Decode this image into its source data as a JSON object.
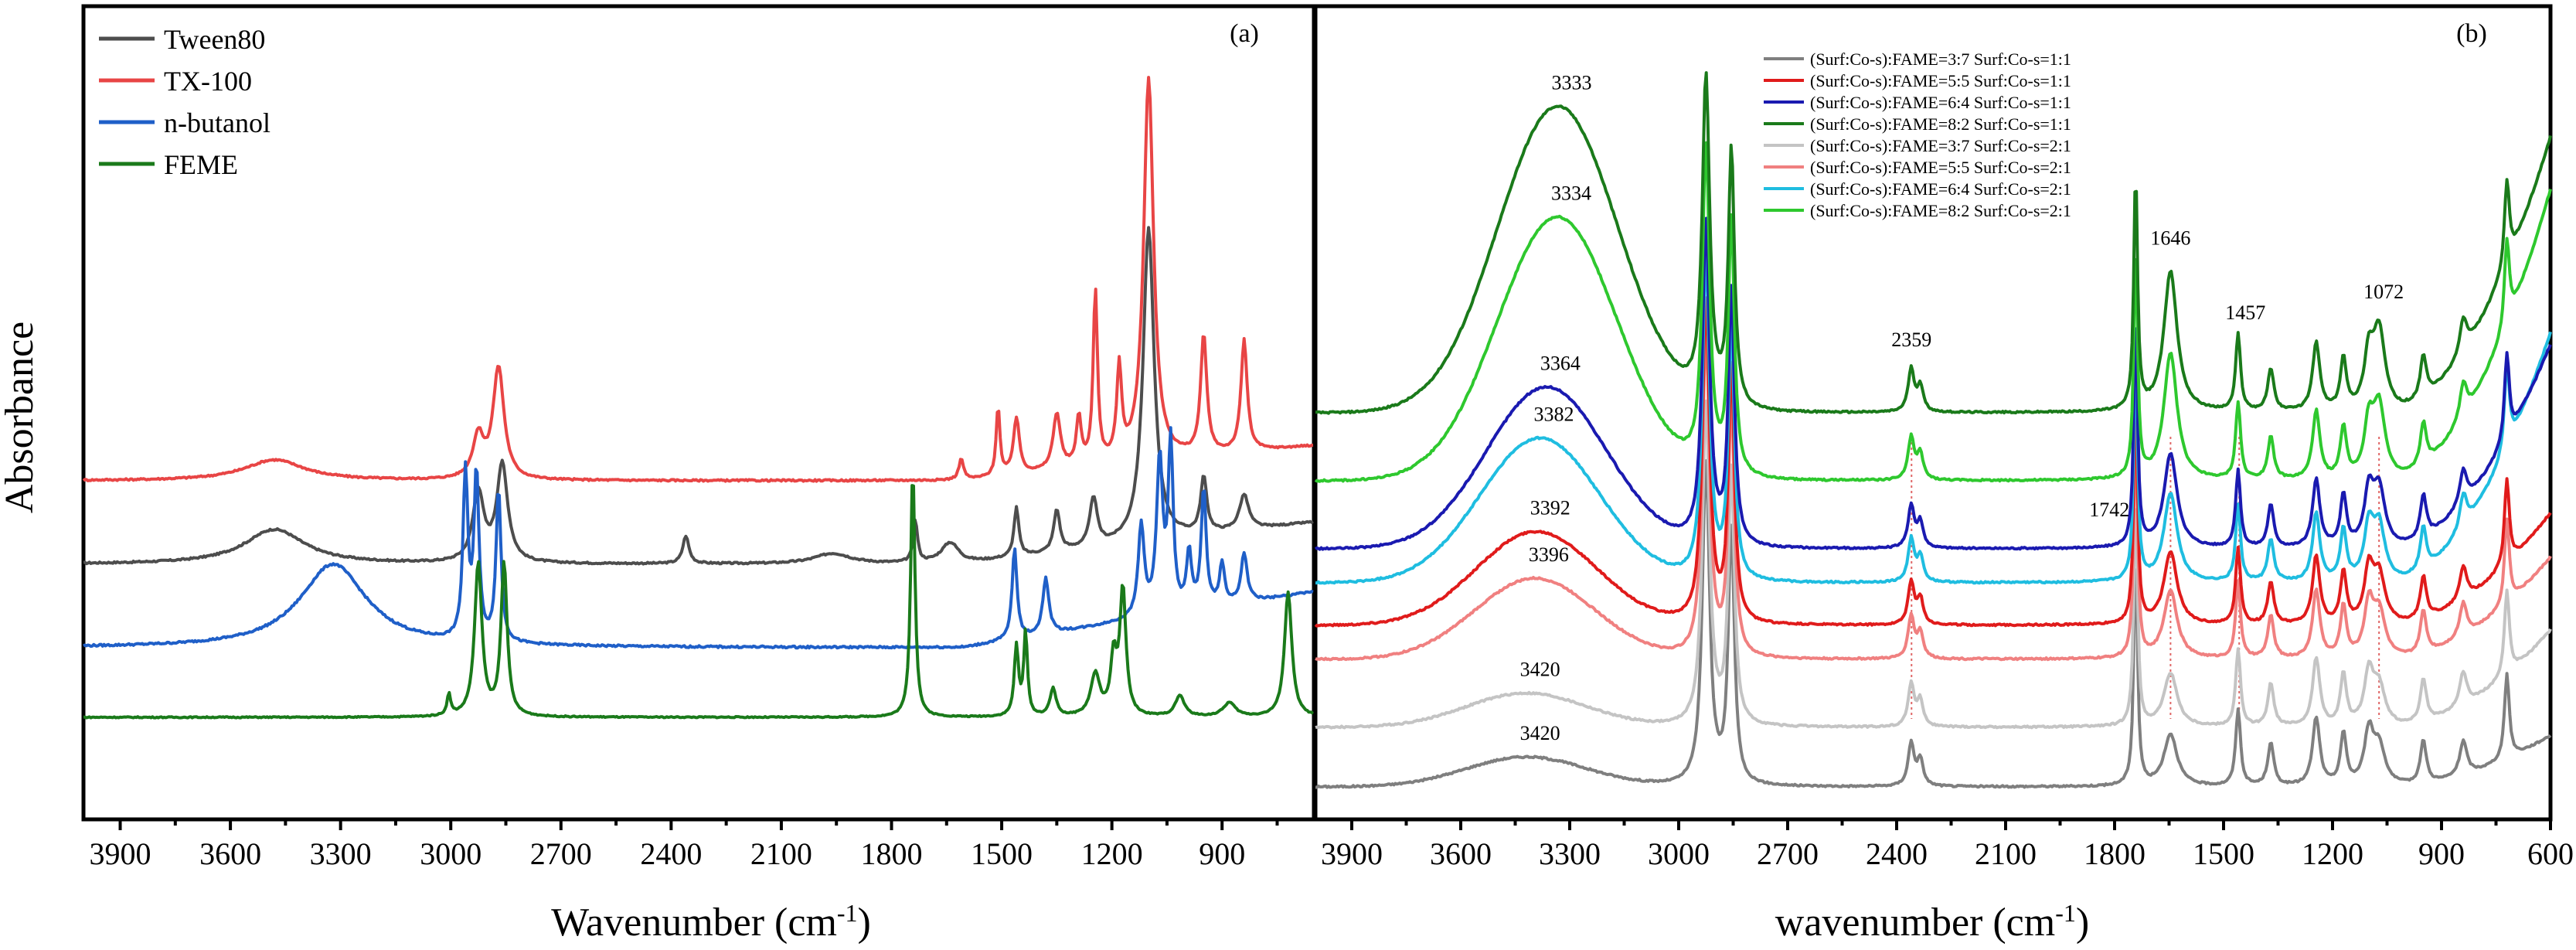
{
  "y_axis_label": "Absorbance",
  "chart_data": [
    {
      "type": "line",
      "panel_label": "(a)",
      "xlabel": "Wavenumber (cm",
      "xlabel_sup": "-1",
      "xlabel_close": ")",
      "xlim": [
        4000,
        650
      ],
      "xticks": [
        3900,
        3600,
        3300,
        3000,
        2700,
        2400,
        2100,
        1800,
        1500,
        1200,
        900
      ],
      "xticklabels": [
        "3900",
        "3600",
        "3300",
        "3000",
        "2700",
        "2400",
        "2100",
        "1800",
        "1500",
        "1200",
        "900"
      ],
      "legend_position": "top-left",
      "series": [
        {
          "name": "Tween80",
          "color": "#4d4d4d",
          "baseline": 0.3,
          "noise": 0.6,
          "peaks": [
            [
              3480,
              100,
              0.05
            ],
            [
              2925,
              18,
              0.1
            ],
            [
              2860,
              18,
              0.14
            ],
            [
              2360,
              10,
              0.04
            ],
            [
              1960,
              60,
              0.015
            ],
            [
              1735,
              7,
              0.06
            ],
            [
              1640,
              30,
              0.03
            ],
            [
              1460,
              8,
              0.07
            ],
            [
              1350,
              10,
              0.06
            ],
            [
              1250,
              12,
              0.07
            ],
            [
              1100,
              18,
              0.45
            ],
            [
              950,
              10,
              0.08
            ],
            [
              840,
              15,
              0.05
            ]
          ],
          "slope": 0.06
        },
        {
          "name": "TX-100",
          "color": "#e84545",
          "baseline": 0.42,
          "noise": 0.6,
          "peaks": [
            [
              3480,
              100,
              0.03
            ],
            [
              2925,
              18,
              0.06
            ],
            [
              2870,
              18,
              0.16
            ],
            [
              1610,
              8,
              0.03
            ],
            [
              1510,
              6,
              0.1
            ],
            [
              1460,
              10,
              0.08
            ],
            [
              1350,
              12,
              0.08
            ],
            [
              1290,
              8,
              0.07
            ],
            [
              1245,
              7,
              0.25
            ],
            [
              1180,
              8,
              0.13
            ],
            [
              1100,
              16,
              0.55
            ],
            [
              950,
              10,
              0.17
            ],
            [
              840,
              10,
              0.16
            ]
          ],
          "slope": 0.05
        },
        {
          "name": "n-butanol",
          "color": "#1f5fc8",
          "baseline": 0.18,
          "noise": 0.7,
          "peaks": [
            [
              3320,
              110,
              0.12
            ],
            [
              2960,
              8,
              0.24
            ],
            [
              2930,
              8,
              0.24
            ],
            [
              2870,
              8,
              0.22
            ],
            [
              1465,
              8,
              0.13
            ],
            [
              1380,
              10,
              0.08
            ],
            [
              1120,
              10,
              0.13
            ],
            [
              1070,
              10,
              0.22
            ],
            [
              1040,
              8,
              0.24
            ],
            [
              990,
              8,
              0.08
            ],
            [
              950,
              8,
              0.17
            ],
            [
              900,
              8,
              0.06
            ],
            [
              840,
              10,
              0.07
            ]
          ],
          "slope": 0.08
        },
        {
          "name": "FEME",
          "color": "#1a7a1a",
          "baseline": 0.08,
          "noise": 0.4,
          "peaks": [
            [
              3005,
              6,
              0.03
            ],
            [
              2925,
              12,
              0.22
            ],
            [
              2855,
              10,
              0.22
            ],
            [
              1742,
              7,
              0.36
            ],
            [
              1460,
              7,
              0.1
            ],
            [
              1435,
              6,
              0.12
            ],
            [
              1360,
              10,
              0.04
            ],
            [
              1245,
              15,
              0.06
            ],
            [
              1195,
              10,
              0.08
            ],
            [
              1170,
              10,
              0.18
            ],
            [
              1015,
              15,
              0.03
            ],
            [
              880,
              20,
              0.02
            ],
            [
              720,
              12,
              0.18
            ]
          ],
          "slope": 0.0
        }
      ]
    },
    {
      "type": "line",
      "panel_label": "(b)",
      "xlabel": "wavenumber (cm",
      "xlabel_sup": "-1",
      "xlabel_close": ")",
      "xlim": [
        4000,
        600
      ],
      "xticks": [
        3900,
        3600,
        3300,
        3000,
        2700,
        2400,
        2100,
        1800,
        1500,
        1200,
        900,
        600
      ],
      "xticklabels": [
        "3900",
        "3600",
        "3300",
        "3000",
        "2700",
        "2400",
        "2100",
        "1800",
        "1500",
        "1200",
        "900",
        "600"
      ],
      "legend_position": "top-right",
      "peak_labels": [
        {
          "text": "3333",
          "x": 3333,
          "series": 3
        },
        {
          "text": "3334",
          "x": 3334,
          "series": 7
        },
        {
          "text": "3364",
          "x": 3364,
          "series": 2
        },
        {
          "text": "3382",
          "x": 3382,
          "series": 6
        },
        {
          "text": "3392",
          "x": 3392,
          "series": 1
        },
        {
          "text": "3396",
          "x": 3396,
          "series": 5
        },
        {
          "text": "3420",
          "x": 3420,
          "series": 4
        },
        {
          "text": "3420",
          "x": 3420,
          "series": 0
        },
        {
          "text": "2359",
          "x": 2359,
          "series": 3
        },
        {
          "text": "1742",
          "x": 1742,
          "series": 2
        },
        {
          "text": "1646",
          "x": 1646,
          "series": 3
        },
        {
          "text": "1457",
          "x": 1457,
          "series": 3
        },
        {
          "text": "1072",
          "x": 1072,
          "series": 3
        }
      ],
      "guide_lines": [
        2359,
        1646,
        1457,
        1072
      ],
      "series": [
        {
          "name": "(Surf:Co-s):FAME=3:7 Surf:Co-s=1:1",
          "color": "#7f7f7f",
          "baseline": 0.02,
          "broad": [
            3420,
            0.035
          ],
          "noise": 0.5,
          "end": 0.12
        },
        {
          "name": "(Surf:Co-s):FAME=5:5 Surf:Co-s=1:1",
          "color": "#e01b1b",
          "baseline": 0.21,
          "broad": [
            3392,
            0.11
          ],
          "noise": 0.5,
          "end": 0.43
        },
        {
          "name": "(Surf:Co-s):FAME=6:4 Surf:Co-s=1:1",
          "color": "#1a1ab0",
          "baseline": 0.3,
          "broad": [
            3364,
            0.19
          ],
          "noise": 0.5,
          "end": 0.7
        },
        {
          "name": "(Surf:Co-s):FAME=8:2 Surf:Co-s=1:1",
          "color": "#1a7a1a",
          "baseline": 0.46,
          "broad": [
            3333,
            0.36
          ],
          "noise": 0.5,
          "end": 1.0
        },
        {
          "name": "(Surf:Co-s):FAME=3:7 Surf:Co-s=2:1",
          "color": "#c4c4c4",
          "baseline": 0.09,
          "broad": [
            3420,
            0.04
          ],
          "noise": 0.5,
          "end": 0.28
        },
        {
          "name": "(Surf:Co-s):FAME=5:5 Surf:Co-s=2:1",
          "color": "#f08080",
          "baseline": 0.17,
          "broad": [
            3396,
            0.095
          ],
          "noise": 0.5,
          "end": 0.37
        },
        {
          "name": "(Surf:Co-s):FAME=6:4 Surf:Co-s=2:1",
          "color": "#1fbde0",
          "baseline": 0.26,
          "broad": [
            3382,
            0.17
          ],
          "noise": 0.5,
          "end": 0.75
        },
        {
          "name": "(Surf:Co-s):FAME=8:2 Surf:Co-s=2:1",
          "color": "#2ec82e",
          "baseline": 0.38,
          "broad": [
            3334,
            0.31
          ],
          "noise": 0.5,
          "end": 0.95
        }
      ]
    }
  ]
}
